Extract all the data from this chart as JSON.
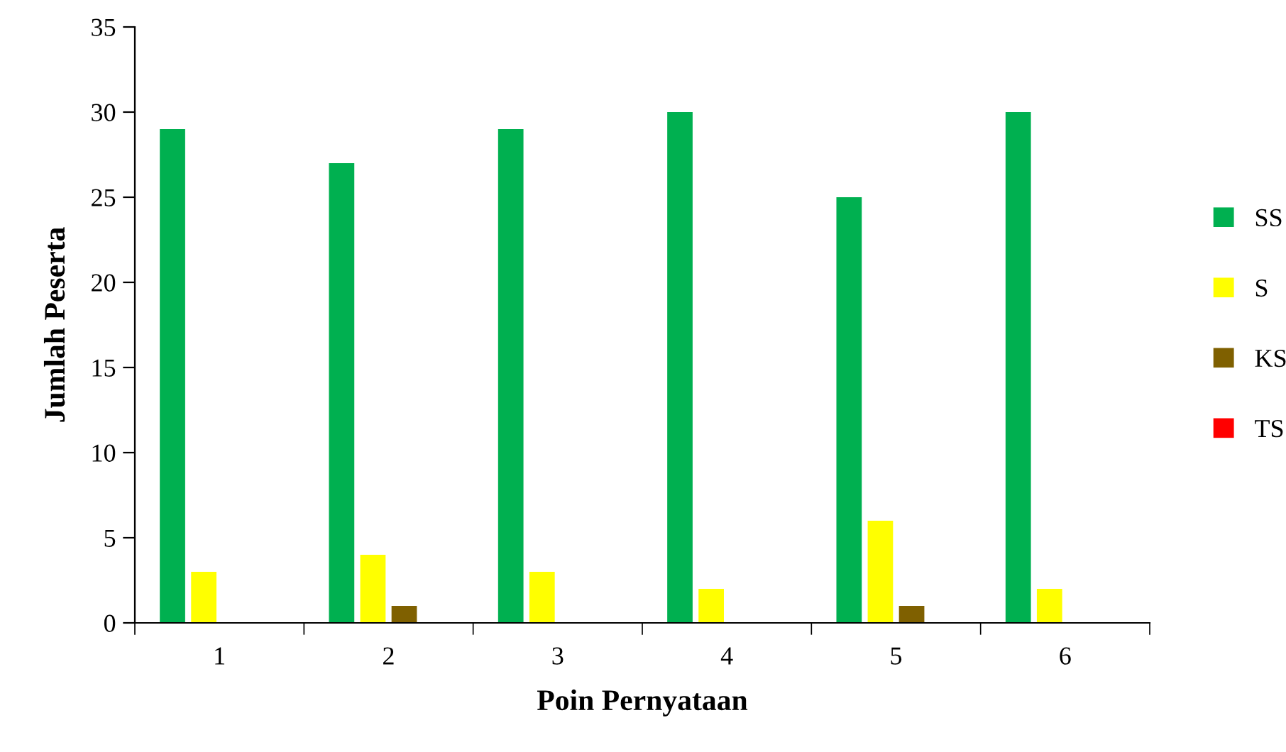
{
  "chart_data": {
    "type": "bar",
    "xlabel": "Poin Pernyataan",
    "ylabel": "Jumlah Peserta",
    "categories": [
      "1",
      "2",
      "3",
      "4",
      "5",
      "6"
    ],
    "series": [
      {
        "name": "SS",
        "color": "#00b050",
        "values": [
          29,
          27,
          29,
          30,
          25,
          30
        ]
      },
      {
        "name": "S",
        "color": "#ffff00",
        "values": [
          3,
          4,
          3,
          2,
          6,
          2
        ]
      },
      {
        "name": "KS",
        "color": "#7f6000",
        "values": [
          0,
          1,
          0,
          0,
          1,
          0
        ]
      },
      {
        "name": "TS",
        "color": "#ff0000",
        "values": [
          0,
          0,
          0,
          0,
          0,
          0
        ]
      }
    ],
    "ylim": [
      0,
      35
    ],
    "yticks": [
      0,
      5,
      10,
      15,
      20,
      25,
      30,
      35
    ],
    "grid": false,
    "legend": "right"
  }
}
